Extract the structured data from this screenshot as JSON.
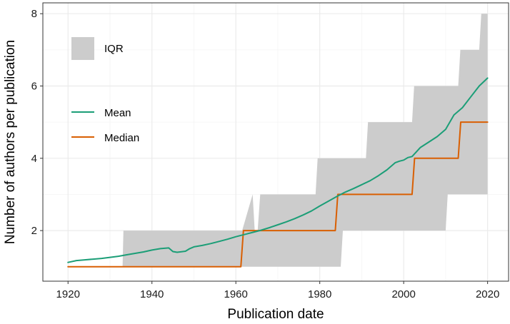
{
  "chart_data": {
    "type": "line",
    "title": "",
    "xlabel": "Publication date",
    "ylabel": "Number of authors per publication",
    "xlim": [
      1914,
      2025
    ],
    "ylim": [
      0.6,
      8.3
    ],
    "x_ticks": [
      1920,
      1940,
      1960,
      1980,
      2000,
      2020
    ],
    "y_ticks": [
      2,
      4,
      6,
      8
    ],
    "grid": true,
    "legend_placement": "top-left",
    "colors": {
      "iqr": "#cccccc",
      "mean": "#1b9e77",
      "median": "#d95f02",
      "grid_major": "#ebebeb",
      "grid_minor": "#f4f4f4",
      "panel_border": "#333333"
    },
    "legend": {
      "iqr_label": "IQR",
      "mean_label": "Mean",
      "median_label": "Median"
    },
    "series": [
      {
        "name": "IQR",
        "kind": "ribbon",
        "x": [
          1920,
          1933,
          1933.2,
          1961.2,
          1961.5,
          1964,
          1964.5,
          1965.2,
          1965.8,
          1979,
          1979.5,
          1985,
          1985.5,
          1991,
          1991.5,
          2002,
          2002.5,
          2010,
          2010.5,
          2013,
          2013.5,
          2018,
          2018.5,
          2020
        ],
        "lower": [
          1,
          1,
          1,
          1,
          1,
          1,
          1,
          1,
          1,
          1,
          1,
          1,
          2,
          2,
          2,
          2,
          2,
          2,
          3,
          3,
          3,
          3,
          3,
          3
        ],
        "upper": [
          1,
          1,
          2,
          2,
          2,
          3,
          2,
          2,
          3,
          3,
          4,
          4,
          4,
          4,
          5,
          5,
          6,
          6,
          6,
          6,
          7,
          7,
          8,
          8
        ]
      },
      {
        "name": "Mean",
        "kind": "line",
        "x": [
          1920,
          1922,
          1924,
          1926,
          1928,
          1930,
          1932,
          1934,
          1936,
          1938,
          1940,
          1942,
          1944,
          1945,
          1946,
          1948,
          1949,
          1950,
          1952,
          1954,
          1956,
          1958,
          1960,
          1962,
          1964,
          1966,
          1968,
          1970,
          1972,
          1974,
          1976,
          1978,
          1980,
          1982,
          1984,
          1986,
          1988,
          1990,
          1992,
          1994,
          1996,
          1998,
          1999,
          2000,
          2001,
          2002,
          2004,
          2006,
          2008,
          2010,
          2012,
          2014,
          2016,
          2018,
          2020
        ],
        "y": [
          1.12,
          1.17,
          1.19,
          1.21,
          1.23,
          1.26,
          1.29,
          1.33,
          1.37,
          1.41,
          1.46,
          1.5,
          1.52,
          1.42,
          1.4,
          1.43,
          1.5,
          1.55,
          1.59,
          1.64,
          1.7,
          1.76,
          1.83,
          1.89,
          1.95,
          2.01,
          2.08,
          2.16,
          2.24,
          2.33,
          2.43,
          2.54,
          2.68,
          2.81,
          2.94,
          3.06,
          3.16,
          3.27,
          3.38,
          3.52,
          3.68,
          3.88,
          3.92,
          3.95,
          4.02,
          4.05,
          4.3,
          4.45,
          4.6,
          4.8,
          5.2,
          5.4,
          5.7,
          6.0,
          6.22
        ]
      },
      {
        "name": "Median",
        "kind": "step",
        "x": [
          1920,
          1961.2,
          1961.8,
          1983.7,
          1984.3,
          2002,
          2002.6,
          2013,
          2013.6,
          2020
        ],
        "y": [
          1,
          1,
          2,
          2,
          3,
          3,
          4,
          4,
          5,
          5
        ]
      }
    ]
  }
}
